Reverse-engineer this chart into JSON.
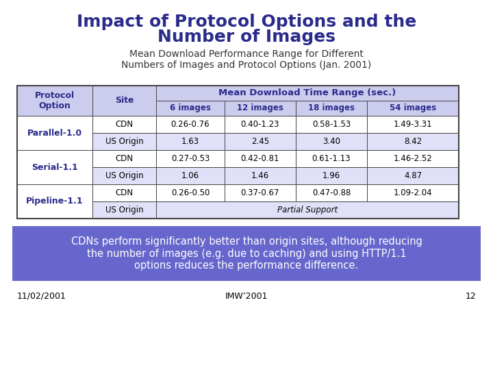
{
  "title_line1": "Impact of Protocol Options and the",
  "title_line2": "Number of Images",
  "subtitle_line1": "Mean Download Performance Range for Different",
  "subtitle_line2": "Numbers of Images and Protocol Options (Jan. 2001)",
  "title_color": "#2B2B8C",
  "subtitle_color": "#333333",
  "footer_text": "CDNs perform significantly better than origin sites, although reducing\nthe number of images (e.g. due to caching) and using HTTP/1.1\noptions reduces the performance difference.",
  "footer_bg_color": "#6666CC",
  "footer_text_color": "#FFFFFF",
  "bottom_left": "11/02/2001",
  "bottom_center": "IMW’2001",
  "bottom_right": "12",
  "header_bg_color": "#CCCCEE",
  "row_alt_color": "#E0E0F8",
  "row_white_color": "#FFFFFF",
  "border_color": "#444444",
  "header_text_color": "#2B2B8C",
  "data_text_color": "#000000",
  "protocol_text_color": "#2B2B8C",
  "col_lefts": [
    25,
    135,
    228,
    328,
    432,
    536
  ],
  "col_rights": [
    135,
    228,
    328,
    432,
    536,
    670
  ],
  "row_tops": [
    415,
    393,
    371,
    346,
    321,
    296,
    271,
    246
  ],
  "row_bots": [
    393,
    371,
    346,
    321,
    296,
    271,
    246,
    221
  ]
}
